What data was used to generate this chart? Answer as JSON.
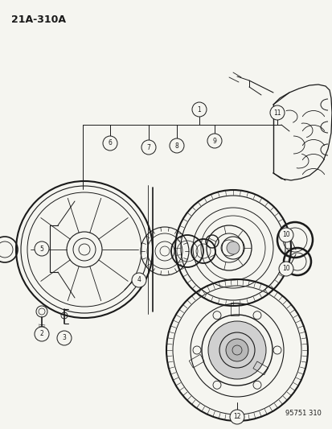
{
  "title": "21A-310A",
  "watermark": "95751 310",
  "bg": "#f5f5f0",
  "lc": "#1a1a1a",
  "fig_width": 4.14,
  "fig_height": 5.33,
  "dpi": 100
}
